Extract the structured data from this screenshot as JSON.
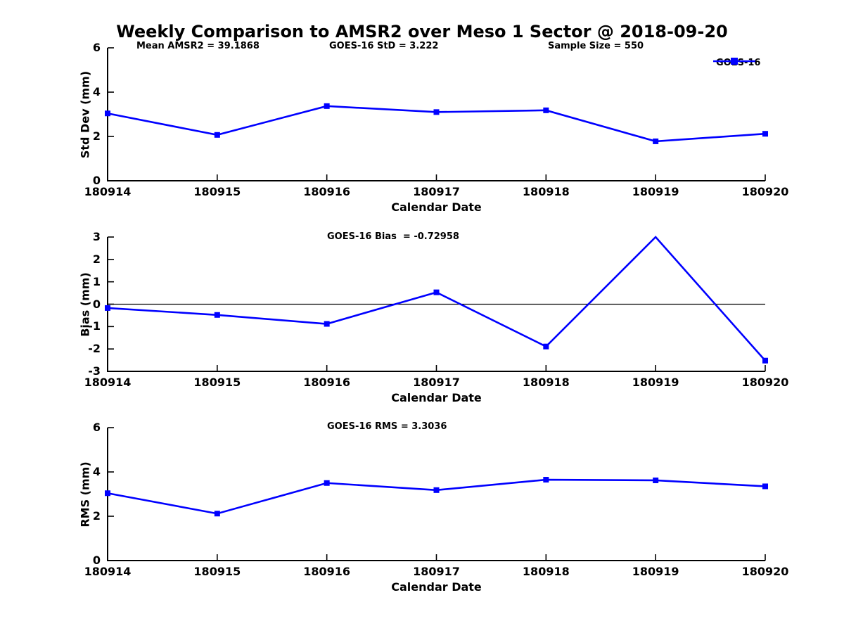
{
  "page_title": "Weekly Comparison to AMSR2 over Meso 1 Sector @ 2018-09-20",
  "legend": {
    "label": "GOES-16",
    "color": "#0000FF"
  },
  "colors": {
    "line": "#0000FF",
    "axis": "#000000",
    "text": "#000000",
    "background": "#FFFFFF"
  },
  "chart_data": [
    {
      "type": "line",
      "name": "std_dev",
      "ylabel": "Std Dev (mm)",
      "xlabel": "Calendar Date",
      "ylim": [
        0,
        6
      ],
      "yticks": [
        6,
        4,
        2,
        0
      ],
      "grid": false,
      "legend_position": "top-right",
      "categories": [
        "180914",
        "180915",
        "180916",
        "180917",
        "180918",
        "180919",
        "180920"
      ],
      "annotations": [
        "Mean AMSR2 = 39.1868",
        "GOES-16 StD = 3.222",
        "Sample Size = 550"
      ],
      "series": [
        {
          "name": "GOES-16",
          "color": "#0000FF",
          "marker": "square",
          "values": [
            3.04,
            2.07,
            3.37,
            3.1,
            3.18,
            1.78,
            2.12
          ]
        }
      ]
    },
    {
      "type": "line",
      "name": "bias",
      "ylabel": "Bias (mm)",
      "xlabel": "Calendar Date",
      "ylim": [
        -3,
        3
      ],
      "yticks": [
        3,
        2,
        1,
        0,
        -1,
        -2,
        -3
      ],
      "zero_line": true,
      "grid": false,
      "categories": [
        "180914",
        "180915",
        "180916",
        "180917",
        "180918",
        "180919",
        "180920"
      ],
      "annotations": [
        "GOES-16 Bias  = -0.72958"
      ],
      "series": [
        {
          "name": "GOES-16",
          "color": "#0000FF",
          "marker": "square",
          "values": [
            -0.17,
            -0.48,
            -0.88,
            0.53,
            -1.89,
            3.0,
            -2.52
          ]
        }
      ]
    },
    {
      "type": "line",
      "name": "rms",
      "ylabel": "RMS (mm)",
      "xlabel": "Calendar Date",
      "ylim": [
        0,
        6
      ],
      "yticks": [
        6,
        4,
        2,
        0
      ],
      "grid": false,
      "categories": [
        "180914",
        "180915",
        "180916",
        "180917",
        "180918",
        "180919",
        "180920"
      ],
      "annotations": [
        "GOES-16 RMS = 3.3036"
      ],
      "series": [
        {
          "name": "GOES-16",
          "color": "#0000FF",
          "marker": "square",
          "values": [
            3.04,
            2.12,
            3.5,
            3.18,
            3.65,
            3.62,
            3.35
          ]
        }
      ]
    }
  ]
}
